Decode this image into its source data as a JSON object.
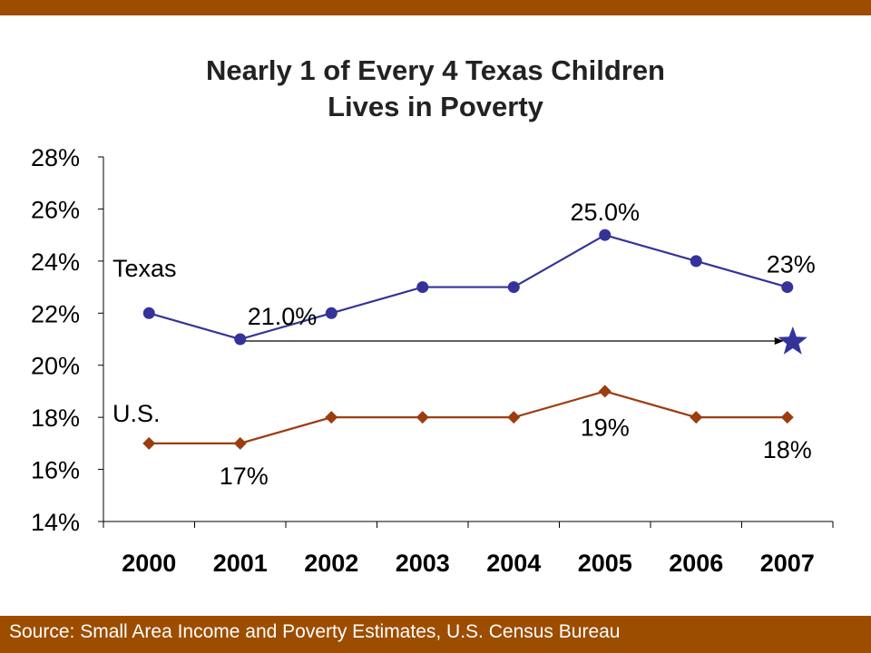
{
  "header": {
    "bar_color": "#9c4d00"
  },
  "title": {
    "line1": "Nearly 1 of Every 4 Texas Children",
    "line2": "Lives in Poverty"
  },
  "footer": {
    "source": "Source: Small Area Income and Poverty Estimates, U.S. Census Bureau"
  },
  "chart_data": {
    "type": "line",
    "categories": [
      "2000",
      "2001",
      "2002",
      "2003",
      "2004",
      "2005",
      "2006",
      "2007"
    ],
    "ylim": [
      14,
      28
    ],
    "yticks": [
      14,
      16,
      18,
      20,
      22,
      24,
      26,
      28
    ],
    "ytick_labels": [
      "14%",
      "16%",
      "18%",
      "20%",
      "22%",
      "24%",
      "26%",
      "28%"
    ],
    "xlabel": "",
    "ylabel": "",
    "grid": false,
    "series": [
      {
        "name": "Texas",
        "values": [
          22,
          21,
          22,
          23,
          23,
          25,
          24,
          23
        ],
        "color": "#33339a",
        "marker": "circle",
        "data_labels": [
          {
            "index": 1,
            "text": "21.0%"
          },
          {
            "index": 5,
            "text": "25.0%"
          },
          {
            "index": 7,
            "text": "23%"
          }
        ]
      },
      {
        "name": "U.S.",
        "values": [
          17,
          17,
          18,
          18,
          18,
          19,
          18,
          18
        ],
        "color": "#9c3d10",
        "marker": "diamond",
        "data_labels": [
          {
            "index": 1,
            "text": "17%"
          },
          {
            "index": 5,
            "text": "19%"
          },
          {
            "index": 7,
            "text": "18%"
          }
        ]
      }
    ],
    "annotations": [
      {
        "type": "arrow",
        "from_category": "2001",
        "to_category": "2007",
        "value": 21,
        "color": "#000000"
      },
      {
        "type": "star",
        "category": "2007",
        "value": 21,
        "color": "#33339a"
      }
    ]
  }
}
